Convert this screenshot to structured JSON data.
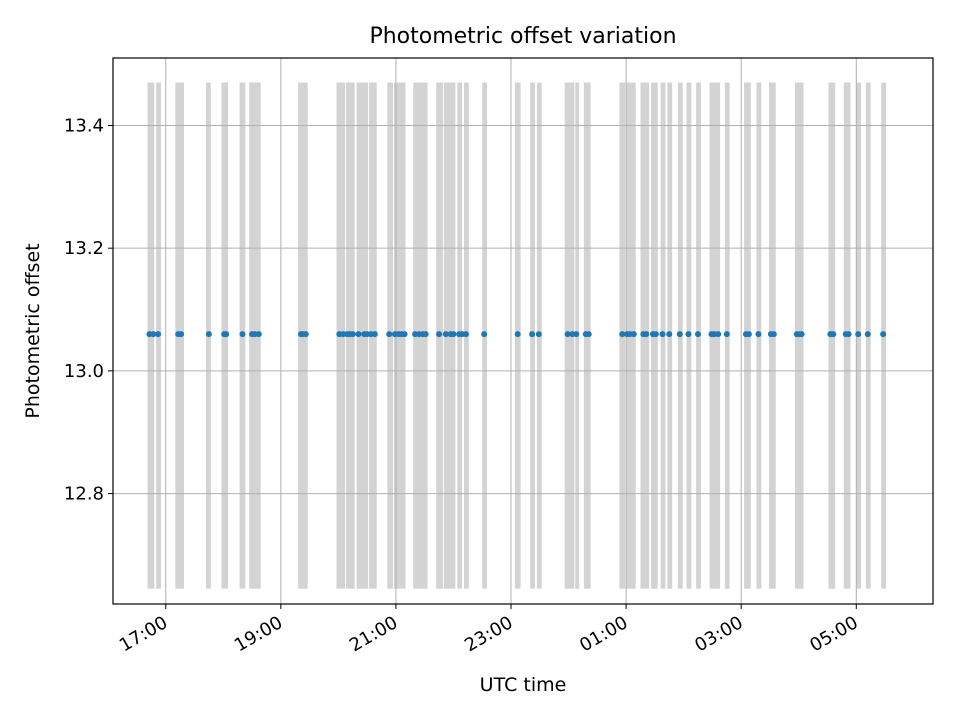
{
  "chart_data": {
    "type": "scatter",
    "title": "Photometric offset variation",
    "xlabel": "UTC time",
    "ylabel": "Photometric offset",
    "x_axis": {
      "type": "time",
      "range": [
        "16:05",
        "06:20"
      ],
      "ticks": [
        "17:00",
        "19:00",
        "21:00",
        "23:00",
        "01:00",
        "03:00",
        "05:00"
      ]
    },
    "y_axis": {
      "range": [
        12.62,
        13.51
      ],
      "ticks": [
        "12.8",
        "13.0",
        "13.2",
        "13.4"
      ],
      "tick_values": [
        12.8,
        13.0,
        13.2,
        13.4
      ]
    },
    "grid": true,
    "series": [
      {
        "color": "#1f77b4",
        "marker": "dot",
        "y_value": 13.06,
        "x": [
          "16:43",
          "16:47",
          "16:52",
          "17:13",
          "17:16",
          "17:45",
          "18:01",
          "18:03",
          "18:20",
          "18:30",
          "18:33",
          "18:37",
          "19:21",
          "19:23",
          "19:26",
          "20:01",
          "20:05",
          "20:09",
          "20:12",
          "20:15",
          "20:21",
          "20:27",
          "20:30",
          "20:34",
          "20:38",
          "20:53",
          "20:59",
          "21:03",
          "21:06",
          "21:09",
          "21:20",
          "21:24",
          "21:28",
          "21:31",
          "21:45",
          "21:52",
          "21:57",
          "22:00",
          "22:06",
          "22:09",
          "22:13",
          "22:32",
          "23:07",
          "23:22",
          "23:29",
          "23:59",
          "24:04",
          "24:08",
          "24:18",
          "24:21",
          "24:56",
          "25:01",
          "25:04",
          "25:08",
          "25:18",
          "25:21",
          "25:28",
          "25:31",
          "25:38",
          "25:45",
          "25:56",
          "26:05",
          "26:15",
          "26:29",
          "26:32",
          "26:36",
          "26:45",
          "27:05",
          "27:08",
          "27:18",
          "27:31",
          "27:34",
          "27:58",
          "28:01",
          "28:03",
          "28:33",
          "28:36",
          "28:49",
          "28:52",
          "29:02",
          "29:12",
          "29:28"
        ]
      }
    ],
    "shaded_intervals": {
      "color": "#d3d3d3",
      "y_range": [
        12.645,
        13.47
      ],
      "x": [
        [
          "16:41",
          "16:48"
        ],
        [
          "16:50",
          "16:55"
        ],
        [
          "17:10",
          "17:19"
        ],
        [
          "17:42",
          "17:47"
        ],
        [
          "17:58",
          "18:05"
        ],
        [
          "18:17",
          "18:23"
        ],
        [
          "18:27",
          "18:39"
        ],
        [
          "19:18",
          "19:28"
        ],
        [
          "19:58",
          "20:07"
        ],
        [
          "20:08",
          "20:17"
        ],
        [
          "20:19",
          "20:31"
        ],
        [
          "20:32",
          "20:40"
        ],
        [
          "20:51",
          "20:57"
        ],
        [
          "20:58",
          "21:10"
        ],
        [
          "21:18",
          "21:33"
        ],
        [
          "21:42",
          "21:49"
        ],
        [
          "21:50",
          "22:02"
        ],
        [
          "22:04",
          "22:09"
        ],
        [
          "22:11",
          "22:16"
        ],
        [
          "22:30",
          "22:35"
        ],
        [
          "23:04",
          "23:10"
        ],
        [
          "23:20",
          "23:25"
        ],
        [
          "23:27",
          "23:32"
        ],
        [
          "23:56",
          "24:06"
        ],
        [
          "24:07",
          "24:11"
        ],
        [
          "24:16",
          "24:23"
        ],
        [
          "24:53",
          "24:59"
        ],
        [
          "25:00",
          "25:10"
        ],
        [
          "25:15",
          "25:24"
        ],
        [
          "25:26",
          "25:33"
        ],
        [
          "25:36",
          "25:41"
        ],
        [
          "25:43",
          "25:48"
        ],
        [
          "25:54",
          "25:59"
        ],
        [
          "26:03",
          "26:08"
        ],
        [
          "26:13",
          "26:18"
        ],
        [
          "26:27",
          "26:38"
        ],
        [
          "26:43",
          "26:48"
        ],
        [
          "27:03",
          "27:10"
        ],
        [
          "27:16",
          "27:21"
        ],
        [
          "27:29",
          "27:36"
        ],
        [
          "27:56",
          "28:05"
        ],
        [
          "28:31",
          "28:38"
        ],
        [
          "28:47",
          "28:54"
        ],
        [
          "29:00",
          "29:05"
        ],
        [
          "29:10",
          "29:15"
        ],
        [
          "29:26",
          "29:31"
        ]
      ]
    }
  }
}
